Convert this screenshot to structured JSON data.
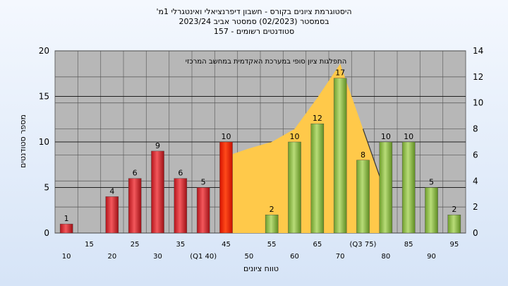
{
  "chart_data": {
    "type": "bar",
    "title_lines": [
      "היסטוגרמת ציונים בקורס - חשבון דיפרנציאלי ואינטגרלי 1מ'",
      "בסמסטר  (02/2023)  סמסטר אביב 2023/24",
      "סטודנטים רשומים - 157"
    ],
    "xlabel": "טווח ציונים",
    "ylabel": "מספר סטודנטים",
    "ylim": [
      0,
      20
    ],
    "yticks": [
      0,
      5,
      10,
      15,
      20
    ],
    "y2lim": [
      0,
      14
    ],
    "y2ticks": [
      0,
      2,
      4,
      6,
      8,
      10,
      12,
      14
    ],
    "categories": [
      "10",
      "15",
      "20",
      "25",
      "30",
      "35",
      "(Q1 40)",
      "45",
      "50",
      "55",
      "60",
      "65",
      "70",
      "(Q3 75)",
      "80",
      "85",
      "90",
      "95"
    ],
    "values": [
      1,
      0,
      4,
      6,
      9,
      6,
      5,
      10,
      0,
      2,
      10,
      12,
      17,
      8,
      10,
      10,
      5,
      2
    ],
    "bar_colors": [
      "#e5343a",
      "#e5343a",
      "#e5343a",
      "#e5343a",
      "#e5343a",
      "#e5343a",
      "#e5343a",
      "#ff2a00",
      "#8fc14a",
      "#8fc14a",
      "#8fc14a",
      "#8fc14a",
      "#8fc14a",
      "#8fc14a",
      "#8fc14a",
      "#8fc14a",
      "#8fc14a",
      "#8fc14a"
    ],
    "area_label": "התפלגות ציון סופי במערכת האקדמית במחשב המרכזי",
    "area_series": [
      {
        "x": "45",
        "y": 5.9
      },
      {
        "x": "50",
        "y": 6.5
      },
      {
        "x": "55",
        "y": 7.0
      },
      {
        "x": "60",
        "y": 8.0
      },
      {
        "x": "65",
        "y": 10.4
      },
      {
        "x": "70",
        "y": 13.0
      },
      {
        "x": "(Q3 75)",
        "y": 8.0
      },
      {
        "x": "80",
        "y": 3.0
      }
    ],
    "colors": {
      "area": "#ffc94a",
      "plot_background": "#b7b7b7",
      "label": "#000000"
    }
  }
}
